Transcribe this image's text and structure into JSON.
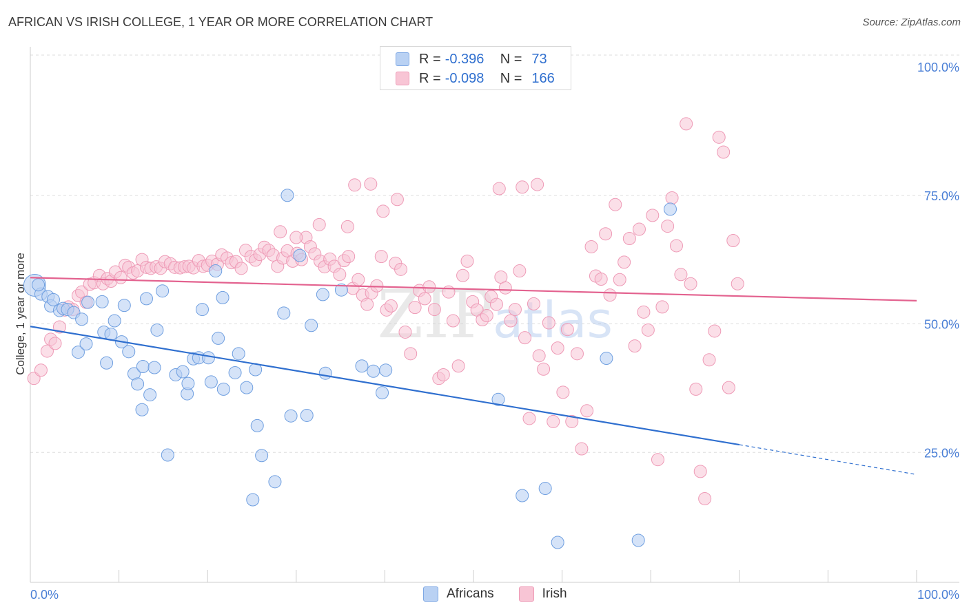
{
  "title": "AFRICAN VS IRISH COLLEGE, 1 YEAR OR MORE CORRELATION CHART",
  "source": "Source: ZipAtlas.com",
  "watermark": {
    "zip": "ZIP",
    "atlas": "atlas"
  },
  "legend": {
    "rows": [
      {
        "r_label": "R =",
        "r_value": "-0.396",
        "n_label": "N =",
        "n_value": "73",
        "color": "#b9d1f3"
      },
      {
        "r_label": "R =",
        "r_value": "-0.098",
        "n_label": "N =",
        "n_value": "166",
        "color": "#f8c5d5"
      }
    ]
  },
  "bottom_legend": [
    "Africans",
    "Irish"
  ],
  "chart_data": {
    "type": "scatter",
    "title": "AFRICAN VS IRISH COLLEGE, 1 YEAR OR MORE CORRELATION CHART",
    "xlabel": "",
    "ylabel": "College, 1 year or more",
    "xlim": [
      0,
      100
    ],
    "ylim": [
      0,
      100
    ],
    "x_tick_labels": [
      "0.0%",
      "100.0%"
    ],
    "y_tick_labels": [
      "25.0%",
      "50.0%",
      "75.0%",
      "100.0%"
    ],
    "y_ticks": [
      25,
      50,
      75,
      100
    ],
    "grid": true,
    "legend_position": "top-center",
    "colors": {
      "Africans": "#5b94e3",
      "Irish": "#ee8fb0",
      "africans_line": "#2f6fcf",
      "irish_line": "#e3628f"
    },
    "series": [
      {
        "name": "Africans",
        "R": -0.396,
        "N": 73,
        "trend": {
          "x0": 0,
          "y0": 49.5,
          "x1": 80,
          "y1": 26.5,
          "dash_to_x": 100,
          "dash_to_y": 20.7
        },
        "points": [
          [
            0.5,
            57.5
          ],
          [
            1.2,
            55.8
          ],
          [
            2.0,
            55.3
          ],
          [
            2.3,
            53.5
          ],
          [
            2.6,
            54.7
          ],
          [
            3.3,
            52.6
          ],
          [
            3.7,
            53.0
          ],
          [
            4.2,
            52.8
          ],
          [
            4.9,
            52.2
          ],
          [
            5.4,
            44.5
          ],
          [
            6.5,
            54.2
          ],
          [
            8.6,
            42.4
          ],
          [
            8.3,
            48.4
          ],
          [
            6.3,
            46.1
          ],
          [
            8.1,
            54.3
          ],
          [
            9.1,
            48.0
          ],
          [
            9.5,
            50.6
          ],
          [
            10.3,
            46.5
          ],
          [
            10.6,
            53.6
          ],
          [
            11.1,
            44.6
          ],
          [
            11.7,
            40.3
          ],
          [
            12.1,
            38.3
          ],
          [
            12.7,
            41.7
          ],
          [
            13.1,
            54.9
          ],
          [
            12.6,
            33.3
          ],
          [
            13.5,
            36.2
          ],
          [
            14.3,
            48.8
          ],
          [
            14.0,
            41.5
          ],
          [
            14.9,
            56.4
          ],
          [
            15.5,
            24.5
          ],
          [
            16.4,
            40.1
          ],
          [
            17.2,
            40.7
          ],
          [
            17.7,
            36.4
          ],
          [
            17.8,
            38.4
          ],
          [
            18.4,
            43.2
          ],
          [
            19.0,
            43.4
          ],
          [
            19.4,
            52.8
          ],
          [
            20.1,
            43.4
          ],
          [
            20.4,
            38.7
          ],
          [
            20.9,
            60.3
          ],
          [
            21.2,
            47.2
          ],
          [
            21.7,
            55.1
          ],
          [
            21.8,
            37.3
          ],
          [
            23.1,
            40.5
          ],
          [
            23.5,
            44.2
          ],
          [
            24.4,
            37.6
          ],
          [
            25.1,
            15.8
          ],
          [
            25.4,
            41.1
          ],
          [
            25.6,
            30.2
          ],
          [
            26.1,
            24.4
          ],
          [
            27.6,
            19.3
          ],
          [
            28.6,
            52.1
          ],
          [
            29.4,
            32.1
          ],
          [
            30.4,
            63.3
          ],
          [
            31.2,
            32.2
          ],
          [
            31.7,
            49.7
          ],
          [
            33.0,
            55.7
          ],
          [
            33.3,
            40.4
          ],
          [
            35.1,
            56.6
          ],
          [
            37.4,
            41.8
          ],
          [
            38.7,
            40.8
          ],
          [
            39.7,
            36.6
          ],
          [
            40.1,
            41.0
          ],
          [
            29.0,
            75.0
          ],
          [
            52.8,
            35.3
          ],
          [
            55.5,
            16.6
          ],
          [
            58.1,
            18.0
          ],
          [
            59.5,
            7.5
          ],
          [
            65.0,
            43.3
          ],
          [
            68.6,
            7.9
          ],
          [
            72.2,
            72.3
          ],
          [
            0.9,
            57.6
          ],
          [
            5.8,
            50.9
          ]
        ]
      },
      {
        "name": "Irish",
        "R": -0.098,
        "N": 166,
        "trend": {
          "x0": 0,
          "y0": 59.0,
          "x1": 100,
          "y1": 54.5
        },
        "points": [
          [
            0.4,
            39.4
          ],
          [
            1.2,
            41.0
          ],
          [
            1.9,
            44.7
          ],
          [
            2.3,
            47.0
          ],
          [
            2.8,
            46.2
          ],
          [
            3.3,
            49.4
          ],
          [
            3.9,
            52.7
          ],
          [
            4.3,
            53.3
          ],
          [
            4.8,
            52.8
          ],
          [
            5.4,
            55.5
          ],
          [
            5.8,
            56.2
          ],
          [
            6.3,
            54.2
          ],
          [
            6.7,
            57.7
          ],
          [
            7.2,
            58.0
          ],
          [
            7.8,
            59.4
          ],
          [
            8.2,
            57.8
          ],
          [
            8.7,
            58.8
          ],
          [
            9.1,
            58.3
          ],
          [
            9.6,
            60.1
          ],
          [
            10.2,
            59.0
          ],
          [
            10.7,
            61.4
          ],
          [
            11.1,
            61.0
          ],
          [
            11.6,
            59.9
          ],
          [
            12.1,
            60.3
          ],
          [
            12.6,
            62.5
          ],
          [
            13.1,
            61.0
          ],
          [
            13.6,
            60.8
          ],
          [
            14.2,
            61.1
          ],
          [
            14.7,
            60.8
          ],
          [
            15.2,
            62.1
          ],
          [
            15.8,
            61.7
          ],
          [
            16.3,
            61.0
          ],
          [
            16.9,
            60.9
          ],
          [
            17.4,
            61.1
          ],
          [
            17.9,
            61.2
          ],
          [
            18.4,
            60.9
          ],
          [
            19.0,
            62.3
          ],
          [
            19.5,
            61.2
          ],
          [
            20.0,
            61.4
          ],
          [
            20.5,
            62.2
          ],
          [
            21.1,
            61.6
          ],
          [
            21.6,
            63.4
          ],
          [
            22.2,
            62.8
          ],
          [
            22.7,
            61.9
          ],
          [
            23.2,
            62.1
          ],
          [
            23.8,
            60.8
          ],
          [
            24.3,
            64.3
          ],
          [
            24.9,
            63.1
          ],
          [
            25.4,
            62.4
          ],
          [
            25.9,
            63.5
          ],
          [
            26.4,
            64.9
          ],
          [
            26.9,
            64.3
          ],
          [
            27.4,
            63.4
          ],
          [
            27.9,
            61.2
          ],
          [
            28.5,
            62.8
          ],
          [
            29.0,
            64.2
          ],
          [
            29.6,
            62.2
          ],
          [
            30.1,
            63.7
          ],
          [
            30.6,
            62.5
          ],
          [
            31.1,
            66.8
          ],
          [
            31.6,
            65.0
          ],
          [
            32.1,
            63.6
          ],
          [
            32.7,
            62.2
          ],
          [
            33.2,
            61.1
          ],
          [
            33.8,
            62.6
          ],
          [
            34.3,
            61.2
          ],
          [
            34.9,
            59.6
          ],
          [
            35.4,
            62.3
          ],
          [
            35.9,
            63.1
          ],
          [
            36.4,
            56.9
          ],
          [
            37.0,
            58.6
          ],
          [
            37.5,
            55.6
          ],
          [
            38.0,
            53.8
          ],
          [
            38.5,
            56.0
          ],
          [
            39.1,
            57.4
          ],
          [
            39.6,
            63.1
          ],
          [
            40.2,
            52.7
          ],
          [
            40.7,
            53.5
          ],
          [
            41.2,
            61.8
          ],
          [
            41.8,
            60.6
          ],
          [
            42.3,
            48.4
          ],
          [
            42.9,
            44.2
          ],
          [
            43.4,
            53.2
          ],
          [
            43.9,
            56.5
          ],
          [
            44.5,
            54.9
          ],
          [
            45.0,
            57.2
          ],
          [
            45.6,
            52.8
          ],
          [
            46.1,
            39.4
          ],
          [
            46.6,
            40.1
          ],
          [
            47.2,
            56.2
          ],
          [
            47.7,
            50.6
          ],
          [
            48.3,
            41.8
          ],
          [
            48.8,
            59.4
          ],
          [
            49.3,
            62.2
          ],
          [
            49.9,
            54.3
          ],
          [
            50.4,
            52.7
          ],
          [
            51.0,
            50.8
          ],
          [
            51.5,
            51.6
          ],
          [
            52.0,
            55.3
          ],
          [
            52.6,
            53.8
          ],
          [
            53.1,
            59.1
          ],
          [
            53.6,
            57.0
          ],
          [
            54.2,
            50.6
          ],
          [
            54.7,
            52.8
          ],
          [
            55.2,
            60.3
          ],
          [
            55.8,
            47.3
          ],
          [
            56.3,
            31.6
          ],
          [
            56.8,
            53.9
          ],
          [
            57.4,
            43.8
          ],
          [
            57.9,
            41.2
          ],
          [
            58.5,
            50.2
          ],
          [
            59.0,
            31.0
          ],
          [
            59.5,
            45.3
          ],
          [
            60.1,
            36.7
          ],
          [
            60.6,
            48.9
          ],
          [
            61.1,
            31.0
          ],
          [
            61.7,
            44.2
          ],
          [
            62.2,
            25.7
          ],
          [
            62.8,
            33.1
          ],
          [
            63.3,
            65.0
          ],
          [
            63.8,
            59.3
          ],
          [
            64.4,
            58.7
          ],
          [
            64.9,
            67.5
          ],
          [
            65.4,
            55.6
          ],
          [
            66.0,
            73.2
          ],
          [
            66.5,
            58.6
          ],
          [
            67.0,
            62.0
          ],
          [
            67.6,
            66.6
          ],
          [
            68.2,
            45.7
          ],
          [
            68.7,
            68.4
          ],
          [
            69.2,
            52.3
          ],
          [
            69.7,
            48.8
          ],
          [
            70.2,
            71.1
          ],
          [
            70.8,
            23.6
          ],
          [
            71.3,
            53.3
          ],
          [
            71.9,
            69.0
          ],
          [
            72.4,
            74.5
          ],
          [
            72.9,
            65.2
          ],
          [
            73.4,
            59.6
          ],
          [
            74.0,
            88.9
          ],
          [
            74.5,
            57.8
          ],
          [
            75.1,
            37.3
          ],
          [
            75.6,
            21.3
          ],
          [
            76.1,
            16.0
          ],
          [
            76.6,
            43.0
          ],
          [
            77.2,
            48.6
          ],
          [
            77.7,
            86.3
          ],
          [
            78.2,
            83.4
          ],
          [
            78.8,
            37.6
          ],
          [
            79.3,
            66.2
          ],
          [
            79.8,
            57.8
          ],
          [
            57.2,
            77.1
          ],
          [
            55.5,
            76.6
          ],
          [
            52.9,
            76.3
          ],
          [
            41.4,
            74.2
          ],
          [
            39.8,
            71.9
          ],
          [
            38.4,
            77.2
          ],
          [
            32.6,
            69.3
          ],
          [
            35.8,
            68.9
          ],
          [
            30.0,
            66.8
          ],
          [
            28.2,
            67.9
          ],
          [
            36.6,
            77.0
          ]
        ]
      }
    ]
  }
}
